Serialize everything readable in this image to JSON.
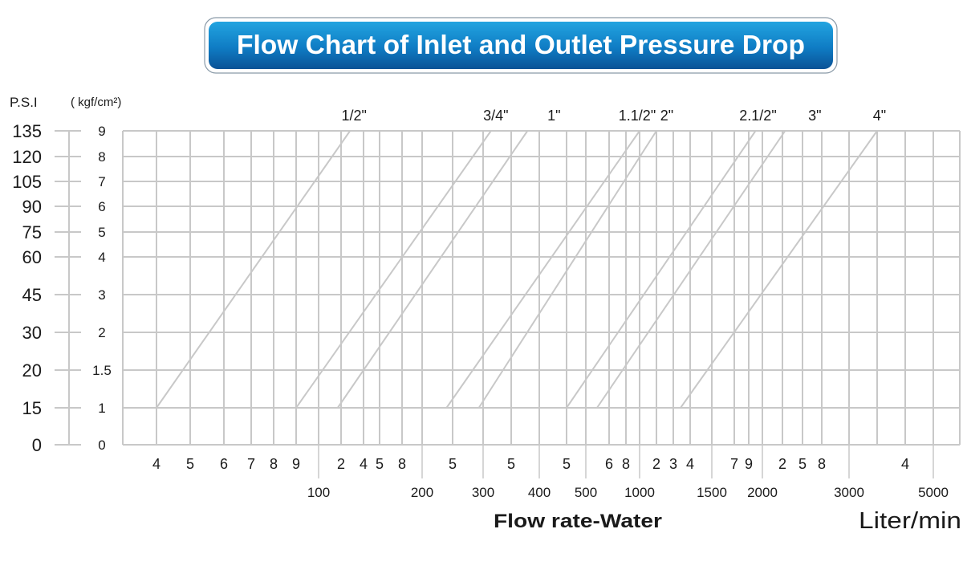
{
  "chart_data": {
    "type": "line",
    "title": "Flow Chart of Inlet and Outlet Pressure Drop",
    "xlabel": "Flow rate-Water",
    "x_unit": "Liter/min",
    "y_left_label": "P.S.I",
    "y_right_label": "( kgf/cm²)",
    "grid": true,
    "colors": {
      "title_bg_top": "#1e9ad8",
      "title_bg_bottom": "#0a5ea6",
      "grid": "#c8c8c8",
      "lines": "#c8c8c8",
      "text": "#1a1a1a"
    },
    "y_ticks": [
      {
        "psi": "0",
        "kgf": "0",
        "value": 0
      },
      {
        "psi": "15",
        "kgf": "1",
        "value": 1
      },
      {
        "psi": "20",
        "kgf": "1.5",
        "value": 1.5
      },
      {
        "psi": "30",
        "kgf": "2",
        "value": 2
      },
      {
        "psi": "45",
        "kgf": "3",
        "value": 3
      },
      {
        "psi": "60",
        "kgf": "4",
        "value": 4
      },
      {
        "psi": "75",
        "kgf": "5",
        "value": 5
      },
      {
        "psi": "90",
        "kgf": "6",
        "value": 6
      },
      {
        "psi": "105",
        "kgf": "7",
        "value": 7
      },
      {
        "psi": "120",
        "kgf": "8",
        "value": 8
      },
      {
        "psi": "135",
        "kgf": "9",
        "value": 9
      }
    ],
    "x_ticks": [
      {
        "value": 40,
        "label": "4",
        "major": false
      },
      {
        "value": 50,
        "label": "5",
        "major": false
      },
      {
        "value": 60,
        "label": "6",
        "major": false
      },
      {
        "value": 70,
        "label": "7",
        "major": false
      },
      {
        "value": 80,
        "label": "8",
        "major": false
      },
      {
        "value": 90,
        "label": "9",
        "major": false
      },
      {
        "value": 100,
        "label": "100",
        "major": true
      },
      {
        "value": 120,
        "label": "2",
        "major": false
      },
      {
        "value": 140,
        "label": "4",
        "major": false
      },
      {
        "value": 150,
        "label": "5",
        "major": false
      },
      {
        "value": 180,
        "label": "8",
        "major": false
      },
      {
        "value": 200,
        "label": "200",
        "major": true
      },
      {
        "value": 250,
        "label": "5",
        "major": false
      },
      {
        "value": 300,
        "label": "300",
        "major": true
      },
      {
        "value": 350,
        "label": "5",
        "major": false
      },
      {
        "value": 400,
        "label": "400",
        "major": true
      },
      {
        "value": 450,
        "label": "5",
        "major": false
      },
      {
        "value": 500,
        "label": "500",
        "major": true
      },
      {
        "value": 600,
        "label": "6",
        "major": false
      },
      {
        "value": 800,
        "label": "8",
        "major": false
      },
      {
        "value": 1000,
        "label": "1000",
        "major": true
      },
      {
        "value": 1200,
        "label": "2",
        "major": false
      },
      {
        "value": 1300,
        "label": "3",
        "major": false
      },
      {
        "value": 1400,
        "label": "4",
        "major": false
      },
      {
        "value": 1500,
        "label": "1500",
        "major": true
      },
      {
        "value": 1700,
        "label": "7",
        "major": false
      },
      {
        "value": 1900,
        "label": "9",
        "major": false
      },
      {
        "value": 2000,
        "label": "2000",
        "major": true
      },
      {
        "value": 2200,
        "label": "2",
        "major": false
      },
      {
        "value": 2500,
        "label": "5",
        "major": false
      },
      {
        "value": 2800,
        "label": "8",
        "major": false
      },
      {
        "value": 3000,
        "label": "3000",
        "major": true
      },
      {
        "value": 3500,
        "label": "",
        "major": false
      },
      {
        "value": 4000,
        "label": "4",
        "major": false
      },
      {
        "value": 5000,
        "label": "5000",
        "major": true
      }
    ],
    "series": [
      {
        "name": "1/2\"",
        "points": [
          [
            40,
            1
          ],
          [
            128,
            9
          ]
        ]
      },
      {
        "name": "3/4\"",
        "points": [
          [
            90,
            1
          ],
          [
            314,
            9
          ]
        ]
      },
      {
        "name": "1\"",
        "points": [
          [
            117,
            1
          ],
          [
            379,
            9
          ]
        ]
      },
      {
        "name": "1.1/2\"",
        "points": [
          [
            240,
            1
          ],
          [
            1000,
            9
          ]
        ]
      },
      {
        "name": "2\"",
        "points": [
          [
            293,
            1
          ],
          [
            1200,
            9
          ]
        ]
      },
      {
        "name": "2.1/2\"",
        "points": [
          [
            450,
            1
          ],
          [
            1950,
            9
          ]
        ]
      },
      {
        "name": "3\"",
        "points": [
          [
            548,
            1
          ],
          [
            2240,
            9
          ]
        ]
      },
      {
        "name": "4\"",
        "points": [
          [
            1343,
            1
          ],
          [
            3500,
            9
          ]
        ]
      }
    ]
  }
}
